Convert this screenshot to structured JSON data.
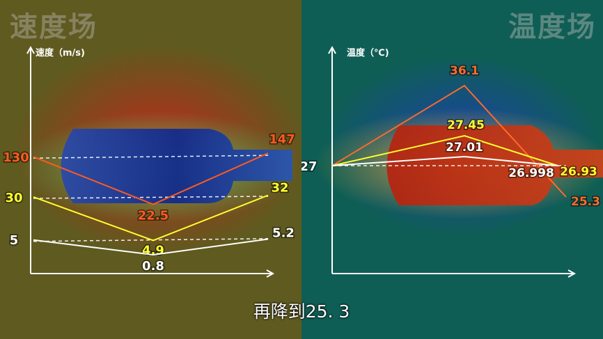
{
  "left": {
    "title": "速度场",
    "chart_data": {
      "type": "line",
      "ylabel": "速度（m/s)",
      "x": [
        0,
        1,
        2
      ],
      "series": [
        {
          "values": [
            130,
            22.5,
            147
          ],
          "color": "#ff5a1f"
        },
        {
          "values": [
            30,
            4.9,
            32
          ],
          "color": "#ffff2e"
        },
        {
          "values": [
            5,
            0.8,
            5.2
          ],
          "color": "#ffffff"
        }
      ],
      "reference_lines": [
        130,
        30,
        5
      ]
    }
  },
  "right": {
    "title": "温度场",
    "chart_data": {
      "type": "line",
      "ylabel": "温度（℃)",
      "x": [
        0,
        1,
        2,
        3
      ],
      "series": [
        {
          "values": [
            27,
            36.1,
            null,
            25.3
          ],
          "color": "#ff6a2a"
        },
        {
          "values": [
            27,
            27.45,
            26.93,
            null
          ],
          "color": "#ffff2e"
        },
        {
          "values": [
            27,
            27.01,
            26.998,
            null
          ],
          "color": "#ffffff"
        }
      ],
      "reference_lines": [
        27
      ],
      "start_label": "27"
    }
  },
  "subtitle": "再降到25. 3"
}
